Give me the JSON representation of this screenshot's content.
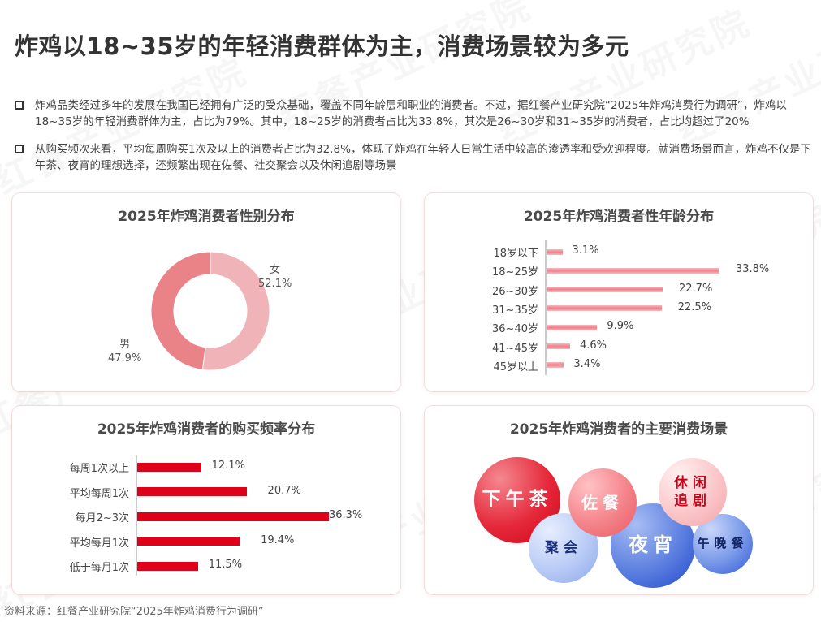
{
  "page": {
    "title": "炸鸡以18~35岁的年轻消费群体为主，消费场景较为多元",
    "bullets": [
      "炸鸡品类经过多年的发展在我国已经拥有广泛的受众基础，覆盖不同年龄层和职业的消费者。不过，据红餐产业研究院“2025年炸鸡消费行为调研”，炸鸡以18~35岁的年轻消费群体为主，占比为79%。其中，18~25岁的消费者占比为33.8%，其次是26~30岁和31~35岁的消费者，占比均超过了20%",
      "从购买频次来看，平均每周购买1次及以上的消费者占比为32.8%，体现了炸鸡在年轻人日常生活中较高的渗透率和受欢迎程度。就消费场景而言，炸鸡不仅是下午茶、夜宵的理想选择，还频繁出现在佐餐、社交聚会以及休闲追剧等场景"
    ],
    "source": "资料来源：红餐产业研究院“2025年炸鸡消费行为调研”",
    "watermark": "红餐产业研究院"
  },
  "chart_data": [
    {
      "type": "pie",
      "subtype": "donut",
      "title": "2025年炸鸡消费者性别分布",
      "categories": [
        "女",
        "男"
      ],
      "values": [
        52.1,
        47.9
      ],
      "value_labels": [
        "52.1%",
        "47.9%"
      ],
      "colors": [
        "#f0b4b8",
        "#e98388"
      ],
      "legend": "none"
    },
    {
      "type": "bar",
      "orientation": "horizontal",
      "title": "2025年炸鸡消费者性年龄分布",
      "categories": [
        "18岁以下",
        "18~25岁",
        "26~30岁",
        "31~35岁",
        "36~40岁",
        "41~45岁",
        "45岁以上"
      ],
      "values": [
        3.1,
        33.8,
        22.7,
        22.5,
        9.9,
        4.6,
        3.4
      ],
      "value_labels": [
        "3.1%",
        "33.8%",
        "22.7%",
        "22.5%",
        "9.9%",
        "4.6%",
        "3.4%"
      ],
      "unit": "%",
      "color": "#f08a94",
      "grid": false,
      "xlim": [
        0,
        35
      ]
    },
    {
      "type": "bar",
      "orientation": "horizontal",
      "title": "2025年炸鸡消费者的购买频率分布",
      "categories": [
        "每周1次以上",
        "平均每周1次",
        "每月2~3次",
        "平均每月1次",
        "低于每月1次"
      ],
      "values": [
        12.1,
        20.7,
        36.3,
        19.4,
        11.5
      ],
      "value_labels": [
        "12.1%",
        "20.7%",
        "36.3%",
        "19.4%",
        "11.5%"
      ],
      "unit": "%",
      "color": "#e0001a",
      "grid": false,
      "xlim": [
        0,
        37
      ]
    },
    {
      "type": "bubble",
      "title": "2025年炸鸡消费者的主要消费场景",
      "categories": [
        "下午茶",
        "佐餐",
        "休闲追剧",
        "聚会",
        "夜宵",
        "午晚餐"
      ],
      "groups": [
        "red",
        "red",
        "pink",
        "blue",
        "blue",
        "blue"
      ]
    }
  ],
  "scenes": {
    "afternoon_tea": "下午茶",
    "side_dish": "佐餐",
    "leisure_1": "休闲",
    "leisure_2": "追剧",
    "party": "聚会",
    "late_night": "夜宵",
    "lunch_dinner": "午晚餐"
  }
}
